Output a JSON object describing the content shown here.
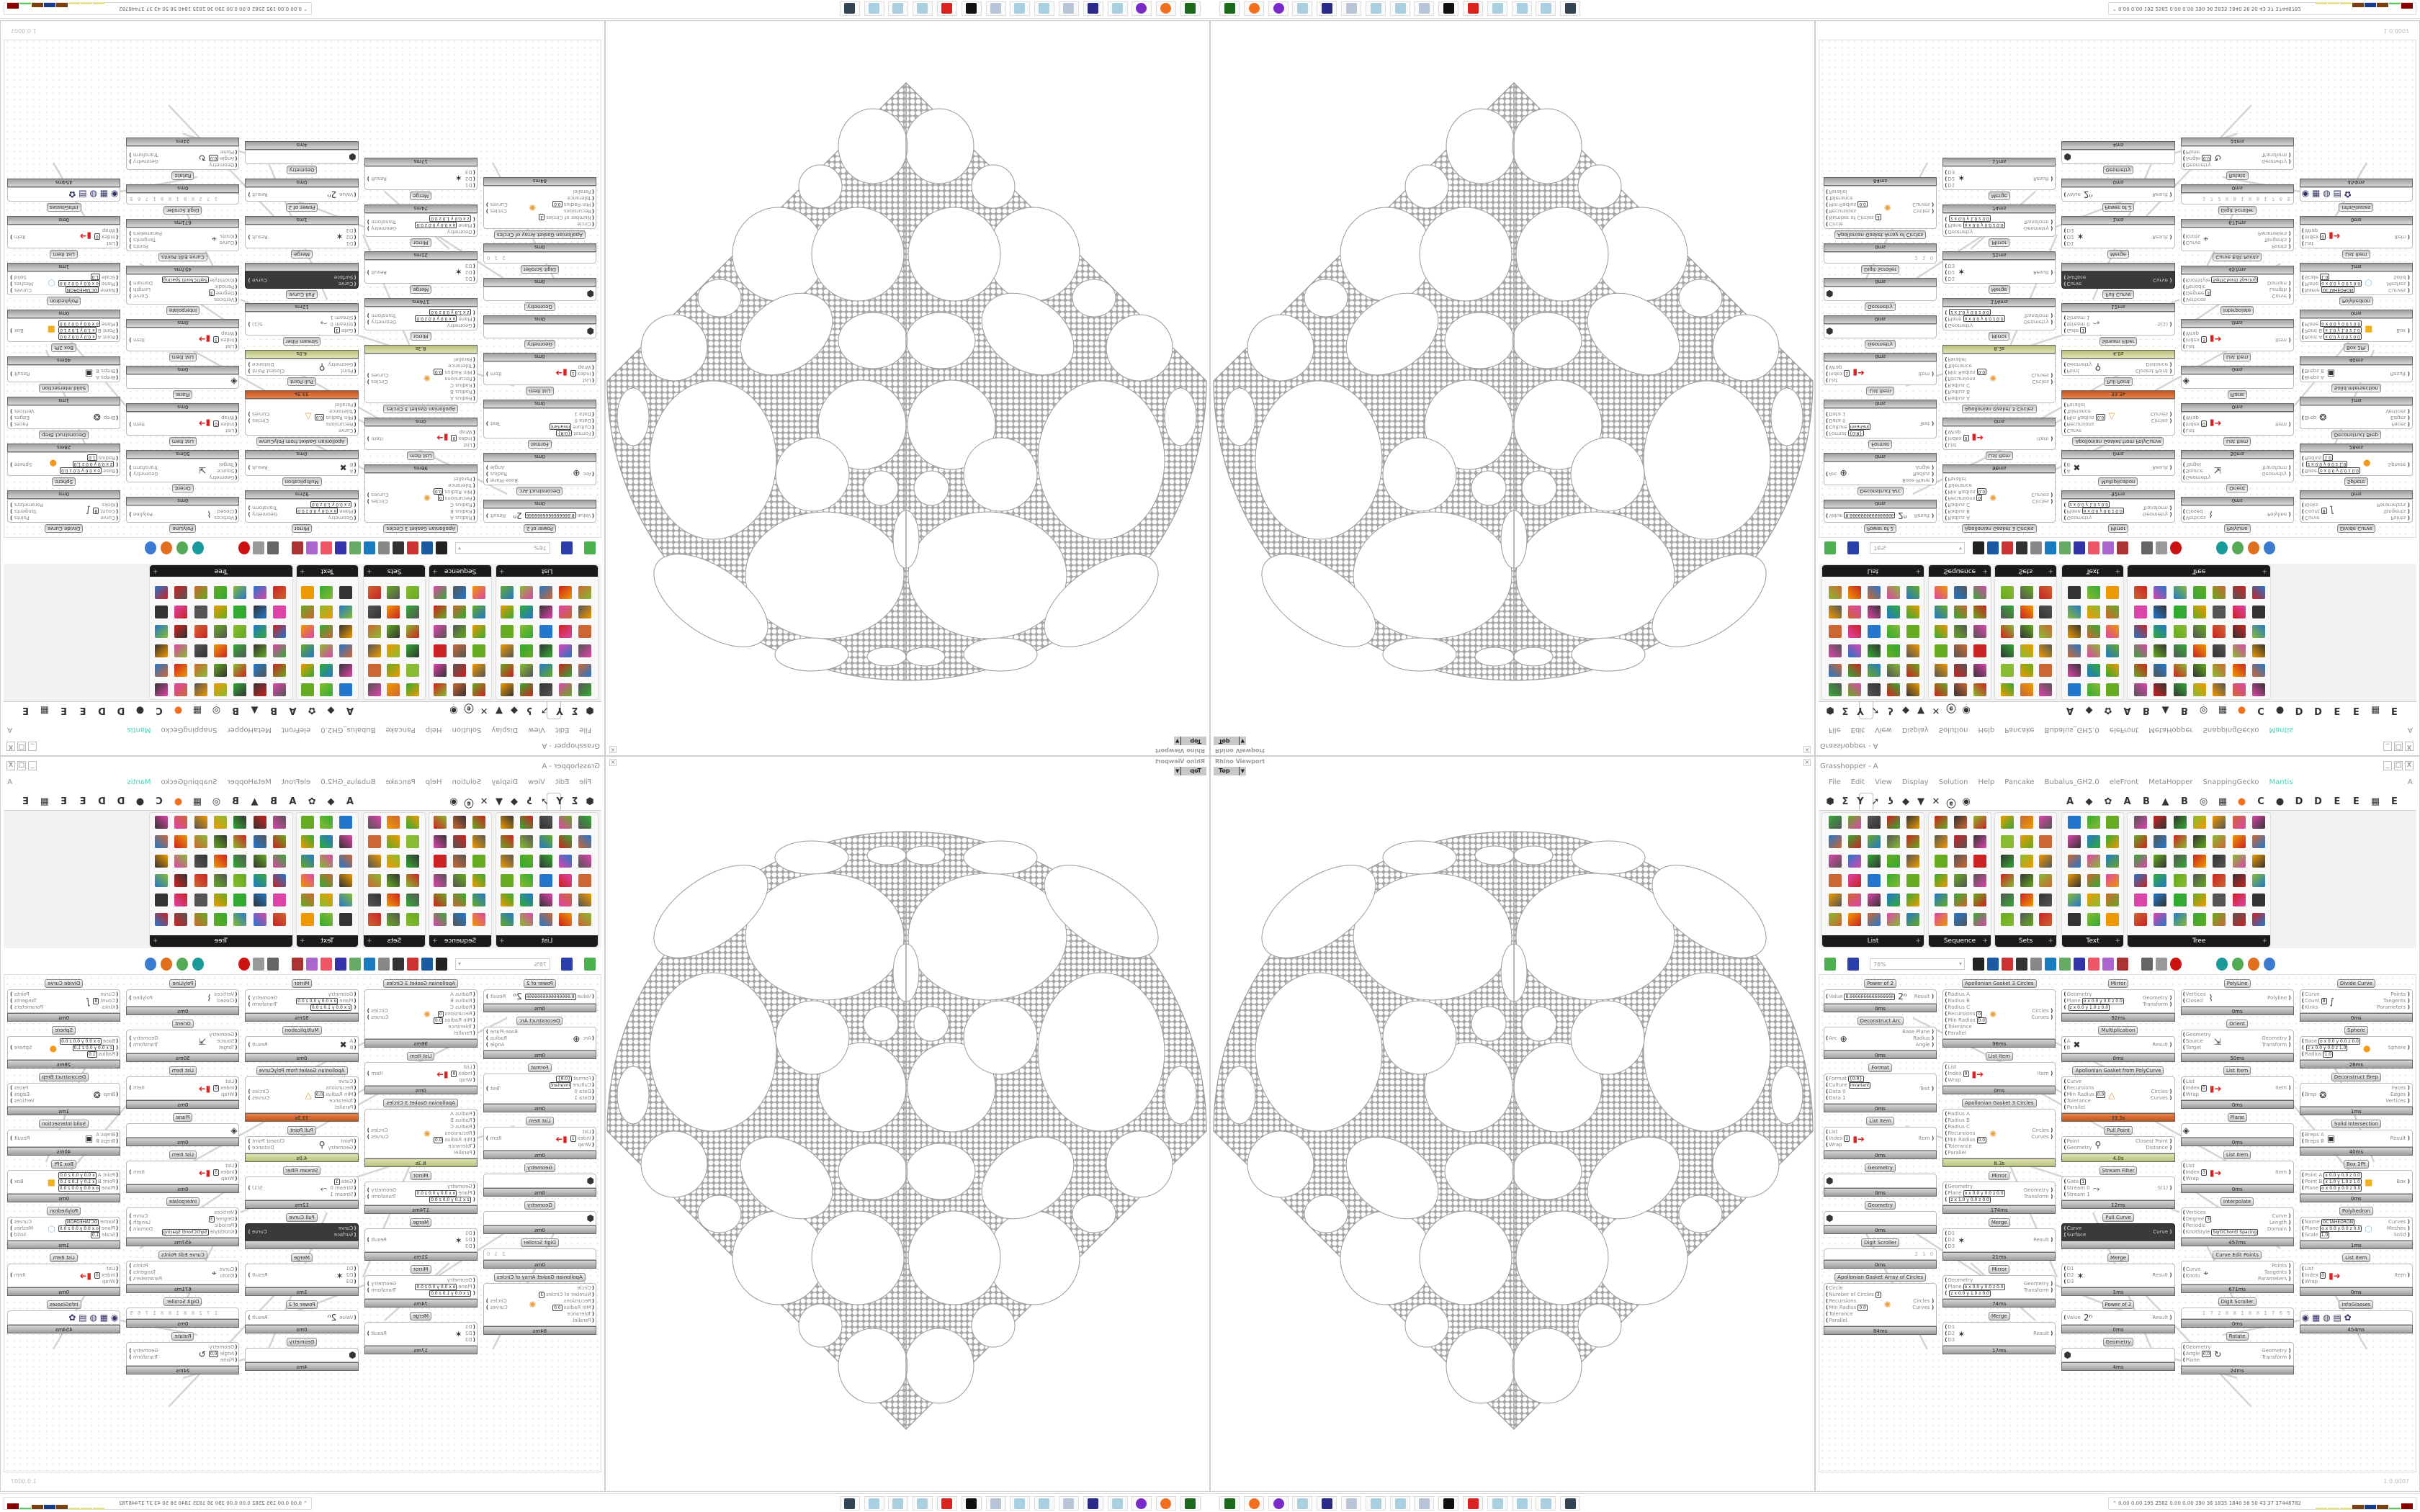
{
  "colors": {
    "mantis": "#3fd3b8",
    "status_warn": "#c2c98a",
    "status_error": "#d2602a",
    "fractal_line": "#a6a6a6"
  },
  "viewport": {
    "title": "Rhino Viewport",
    "view": "Top",
    "close_icon": "close-icon"
  },
  "grasshopper": {
    "title": "Grasshopper - A",
    "window_buttons": [
      "_",
      "□",
      "X"
    ],
    "menu": [
      "File",
      "Edit",
      "View",
      "Display",
      "Solution",
      "Help",
      "Pancake",
      "Bubalus_GH2.0",
      "eleFront",
      "MetaHopper",
      "SnappingGecko",
      "Mantis"
    ],
    "menu_right": "A",
    "tabs": [
      "⬢",
      "Σ",
      "Y",
      "➚",
      "ʖ",
      "◆",
      "▼",
      "✕",
      "ⓔ",
      "◉"
    ],
    "tabs_right": [
      "A",
      "◆",
      "✿",
      "A",
      "B",
      "▲",
      "B",
      "◎",
      "▦",
      "●",
      "C",
      "●",
      "D",
      "D",
      "E",
      "E",
      "▦",
      "E"
    ],
    "panels": [
      {
        "label": "List"
      },
      {
        "label": "Sequence"
      },
      {
        "label": "Sets"
      },
      {
        "label": "Text"
      },
      {
        "label": "Tree"
      }
    ],
    "zoom": "76%",
    "version": "1.0.0007",
    "components": [
      {
        "label": "Power of 2",
        "inputs": [
          {
            "n": "Value",
            "v": "8.6666666666666666"
          }
        ],
        "outputs": [
          {
            "n": "Result"
          }
        ],
        "icon": "power-icon",
        "status": "0ms"
      },
      {
        "label": "Deconstruct Arc",
        "inputs": [
          {
            "n": "Arc"
          }
        ],
        "outputs": [
          {
            "n": "Base Plane"
          },
          {
            "n": "Radius"
          },
          {
            "n": "Angle"
          }
        ],
        "icon": "arc-icon",
        "status": "0ms"
      },
      {
        "label": "Format",
        "inputs": [
          {
            "n": "Format",
            "v": "{0:R}"
          },
          {
            "n": "Culture",
            "v": "invariant"
          },
          {
            "n": "Data 0"
          },
          {
            "n": "Data 1"
          }
        ],
        "outputs": [
          {
            "n": "Text"
          }
        ],
        "status": "0ms"
      },
      {
        "label": "List Item",
        "inputs": [
          {
            "n": "List"
          },
          {
            "n": "Index",
            "v": "1"
          },
          {
            "n": "Wrap"
          }
        ],
        "outputs": [
          {
            "n": "Item"
          }
        ],
        "icon": "list-item-icon",
        "status": "0ms"
      },
      {
        "label": "Geometry",
        "inputs": [],
        "outputs": [],
        "icon": "geometry-icon",
        "status": "0ms"
      },
      {
        "label": "Geometry",
        "inputs": [],
        "outputs": [],
        "icon": "geometry-icon",
        "status": "0ms"
      },
      {
        "label": "Digit Scroller",
        "inputs": [],
        "outputs": [],
        "display": "2 1 0",
        "status": "0ms"
      },
      {
        "label": "Apollonian Gasket Array of Circles",
        "inputs": [
          {
            "n": "Circle"
          },
          {
            "n": "Number of Circles",
            "v": "3"
          },
          {
            "n": "Recursions"
          },
          {
            "n": "Min Radius",
            "v": "0.0"
          },
          {
            "n": "Tolerance"
          },
          {
            "n": "Parallel"
          }
        ],
        "outputs": [
          {
            "n": "Circles"
          },
          {
            "n": "Curves"
          }
        ],
        "icon": "apollonian-icon",
        "status": "84ms"
      },
      {
        "label": "Apollonian Gasket 3 Circles",
        "inputs": [
          {
            "n": "Radius A"
          },
          {
            "n": "Radius B"
          },
          {
            "n": "Radius C"
          },
          {
            "n": "Recursions",
            "v": "0"
          },
          {
            "n": "Min Radius",
            "v": "0.0"
          },
          {
            "n": "Tolerance"
          },
          {
            "n": "Parallel"
          }
        ],
        "outputs": [
          {
            "n": "Circles"
          },
          {
            "n": "Curves"
          }
        ],
        "icon": "apollonian-icon",
        "status": "96ms"
      },
      {
        "label": "List Item",
        "inputs": [
          {
            "n": "List"
          },
          {
            "n": "Index",
            "v": "0"
          },
          {
            "n": "Wrap"
          }
        ],
        "outputs": [
          {
            "n": "Item"
          }
        ],
        "icon": "list-item-icon",
        "status": "0ms"
      },
      {
        "label": "Apollonian Gasket 3 Circles",
        "inputs": [
          {
            "n": "Radius A"
          },
          {
            "n": "Radius B"
          },
          {
            "n": "Radius C"
          },
          {
            "n": "Recursions"
          },
          {
            "n": "Min Radius",
            "v": "0.0"
          },
          {
            "n": "Tolerance"
          },
          {
            "n": "Parallel"
          }
        ],
        "outputs": [
          {
            "n": "Circles"
          },
          {
            "n": "Curves"
          }
        ],
        "icon": "apollonian-icon",
        "status": "8.3s",
        "state": "warn"
      },
      {
        "label": "Mirror",
        "inputs": [
          {
            "n": "Geometry"
          },
          {
            "n": "Plane",
            "v": "o x 0.0 y 0.0 z 0.0"
          },
          {
            "n": "",
            "v": "z x 1.0 y 0.0 z 0.0"
          }
        ],
        "outputs": [
          {
            "n": "Geometry"
          },
          {
            "n": "Transform"
          }
        ],
        "status": "174ms"
      },
      {
        "label": "Merge",
        "inputs": [
          {
            "n": "D1"
          },
          {
            "n": "D2"
          },
          {
            "n": "D3"
          }
        ],
        "outputs": [
          {
            "n": "Result"
          }
        ],
        "icon": "merge-icon",
        "status": "21ms"
      },
      {
        "label": "Mirror",
        "inputs": [
          {
            "n": "Geometry"
          },
          {
            "n": "Plane",
            "v": "o x 0.0 y 0.0 z 0.0"
          },
          {
            "n": "",
            "v": "z x 0.0 y 1.0 z 0.0"
          }
        ],
        "outputs": [
          {
            "n": "Geometry"
          },
          {
            "n": "Transform"
          }
        ],
        "status": "74ms"
      },
      {
        "label": "Merge",
        "inputs": [
          {
            "n": "D1"
          },
          {
            "n": "D2"
          },
          {
            "n": "D3"
          }
        ],
        "outputs": [
          {
            "n": "Result"
          }
        ],
        "icon": "merge-icon",
        "status": "17ms"
      },
      {
        "label": "Mirror",
        "inputs": [
          {
            "n": "Geometry"
          },
          {
            "n": "Plane",
            "v": "o x 0.0 y 0.0 z 0.0"
          },
          {
            "n": "",
            "v": "z x 0.0 y 1.0 z 0.0"
          }
        ],
        "outputs": [
          {
            "n": "Geometry"
          },
          {
            "n": "Transform"
          }
        ],
        "status": "92ms"
      },
      {
        "label": "Multiplication",
        "inputs": [
          {
            "n": "A"
          },
          {
            "n": "B"
          }
        ],
        "outputs": [
          {
            "n": "Result"
          }
        ],
        "icon": "multiply-icon",
        "status": "0ms"
      },
      {
        "label": "Apollonian Gasket from PolyCurve",
        "inputs": [
          {
            "n": "Curve"
          },
          {
            "n": "Recursions"
          },
          {
            "n": "Min Radius",
            "v": "0.0"
          },
          {
            "n": "Tolerance"
          },
          {
            "n": "Parallel"
          }
        ],
        "outputs": [
          {
            "n": "Circles"
          },
          {
            "n": "Curves"
          }
        ],
        "icon": "triangle-icon",
        "status": "33.3s",
        "state": "err"
      },
      {
        "label": "Pull Point",
        "inputs": [
          {
            "n": "Point"
          },
          {
            "n": "Geometry"
          }
        ],
        "outputs": [
          {
            "n": "Closest Point"
          },
          {
            "n": "Distance"
          }
        ],
        "icon": "pull-point-icon",
        "status": "4.0s",
        "state": "warn"
      },
      {
        "label": "Stream Filter",
        "inputs": [
          {
            "n": "Gate",
            "v": "1"
          },
          {
            "n": "Stream 0"
          },
          {
            "n": "Stream 1"
          }
        ],
        "outputs": [
          {
            "n": "S(1)"
          }
        ],
        "icon": "stream-filter-icon",
        "status": "12ms"
      },
      {
        "label": "Pull Curve",
        "inputs": [
          {
            "n": "Curve"
          },
          {
            "n": "Surface"
          }
        ],
        "outputs": [
          {
            "n": "Curve"
          }
        ],
        "kind": "dark",
        "status": ""
      },
      {
        "label": "Merge",
        "inputs": [
          {
            "n": "D1"
          },
          {
            "n": "D2"
          },
          {
            "n": "D3"
          }
        ],
        "outputs": [
          {
            "n": "Result"
          }
        ],
        "icon": "merge-icon",
        "status": "1ms"
      },
      {
        "label": "Power of 2",
        "inputs": [
          {
            "n": "Value"
          }
        ],
        "outputs": [
          {
            "n": "Result"
          }
        ],
        "icon": "power-icon",
        "status": "0ms"
      },
      {
        "label": "Geometry",
        "inputs": [],
        "outputs": [],
        "icon": "geometry-icon",
        "status": "4ms"
      },
      {
        "label": "PolyLine",
        "inputs": [
          {
            "n": "Vertices"
          },
          {
            "n": "Closed"
          }
        ],
        "outputs": [
          {
            "n": "Polyline"
          }
        ],
        "icon": "polyline-icon",
        "status": "0ms"
      },
      {
        "label": "Orient",
        "inputs": [
          {
            "n": "Geometry"
          },
          {
            "n": "Source"
          },
          {
            "n": "Target"
          }
        ],
        "outputs": [
          {
            "n": "Geometry"
          },
          {
            "n": "Transform"
          }
        ],
        "icon": "orient-icon",
        "status": "50ms"
      },
      {
        "label": "List Item",
        "inputs": [
          {
            "n": "List"
          },
          {
            "n": "Index",
            "v": "0"
          },
          {
            "n": "Wrap"
          }
        ],
        "outputs": [
          {
            "n": "Item"
          }
        ],
        "icon": "list-item-icon",
        "status": "0ms"
      },
      {
        "label": "Plane",
        "inputs": [],
        "outputs": [],
        "icon": "plane-icon",
        "status": "0ms"
      },
      {
        "label": "List Item",
        "inputs": [
          {
            "n": "List"
          },
          {
            "n": "Index",
            "v": "3"
          },
          {
            "n": "Wrap"
          }
        ],
        "outputs": [
          {
            "n": "Item"
          }
        ],
        "icon": "list-item-icon",
        "status": "0ms"
      },
      {
        "label": "Interpolate",
        "inputs": [
          {
            "n": "Vertices"
          },
          {
            "n": "Degree",
            "v": "3"
          },
          {
            "n": "Periodic"
          },
          {
            "n": "KnotStyle",
            "v": "Sqrt(Chord) Spacing"
          }
        ],
        "outputs": [
          {
            "n": "Curve"
          },
          {
            "n": "Length"
          },
          {
            "n": "Domain"
          }
        ],
        "status": "457ms"
      },
      {
        "label": "Curve Edit Points",
        "inputs": [
          {
            "n": "Curve"
          },
          {
            "n": "Knots"
          }
        ],
        "outputs": [
          {
            "n": "Points"
          },
          {
            "n": "Tangents"
          },
          {
            "n": "Parameters"
          }
        ],
        "icon": "edit-points-icon",
        "status": "671ms"
      },
      {
        "label": "Digit Scroller",
        "inputs": [],
        "outputs": [],
        "display": "1 7 2 8 8 1 8 8 1 7 6 9",
        "status": "0ms"
      },
      {
        "label": "Rotate",
        "inputs": [
          {
            "n": "Geometry"
          },
          {
            "n": "Angle",
            "v": "0.0"
          },
          {
            "n": "Plane"
          }
        ],
        "outputs": [
          {
            "n": "Geometry"
          },
          {
            "n": "Transform"
          }
        ],
        "icon": "rotate-icon",
        "status": "24ms"
      },
      {
        "label": "Divide Curve",
        "inputs": [
          {
            "n": "Curve"
          },
          {
            "n": "Count",
            "v": "8"
          },
          {
            "n": "Kinks"
          }
        ],
        "outputs": [
          {
            "n": "Points"
          },
          {
            "n": "Tangents"
          },
          {
            "n": "Parameters"
          }
        ],
        "icon": "divide-icon",
        "status": "0ms"
      },
      {
        "label": "Sphere",
        "inputs": [
          {
            "n": "Base",
            "v": "o x 0.0 y 0.0 z 0.0"
          },
          {
            "n": "",
            "v": "z x 0.0 y 0.0 z 1.0"
          },
          {
            "n": "Radius",
            "v": "1.0"
          }
        ],
        "outputs": [
          {
            "n": "Sphere"
          }
        ],
        "icon": "sphere-icon",
        "status": "28ms"
      },
      {
        "label": "Deconstruct Brep",
        "inputs": [
          {
            "n": "Brep"
          }
        ],
        "outputs": [
          {
            "n": "Faces"
          },
          {
            "n": "Edges"
          },
          {
            "n": "Vertices"
          }
        ],
        "icon": "brep-icon",
        "status": "1ms"
      },
      {
        "label": "Solid Intersection",
        "inputs": [
          {
            "n": "Breps A"
          },
          {
            "n": "Breps B"
          }
        ],
        "outputs": [
          {
            "n": "Result"
          }
        ],
        "icon": "intersection-icon",
        "status": "40ms"
      },
      {
        "label": "Box 2Pt",
        "inputs": [
          {
            "n": "Point A",
            "v": "x 0.0 y 0.0 z 0.0"
          },
          {
            "n": "Point B",
            "v": "x 1.0 y 1.0 z 1.0"
          },
          {
            "n": "Plane",
            "v": "o x 0.0 y 0.0 z 0.0"
          }
        ],
        "outputs": [
          {
            "n": "Box"
          }
        ],
        "icon": "box-icon",
        "status": "0ms"
      },
      {
        "label": "Polyhedron",
        "inputs": [
          {
            "n": "Name",
            "v": "OCTAHEDRON"
          },
          {
            "n": "Plane",
            "v": "o x 0.0 y 0.0 z 0.0"
          },
          {
            "n": "Scale",
            "v": "1.0"
          }
        ],
        "outputs": [
          {
            "n": "Curves"
          },
          {
            "n": "Meshes"
          },
          {
            "n": "Solid"
          }
        ],
        "icon": "polyhedron-icon",
        "status": "1ms"
      },
      {
        "label": "List Item",
        "inputs": [
          {
            "n": "List"
          },
          {
            "n": "Index",
            "v": "0"
          },
          {
            "n": "Wrap"
          }
        ],
        "outputs": [
          {
            "n": "Item"
          }
        ],
        "icon": "list-item-icon",
        "status": "0ms"
      },
      {
        "label": "InfoGlasses",
        "inputs": [],
        "outputs": [],
        "icon": "infoglasses-icon",
        "status": "454ms"
      }
    ]
  },
  "taskbar": {
    "apps": [
      "terminal-icon",
      "firefox-icon",
      "chat-app-icon",
      "notepad-icon",
      "save-64-icon",
      "scroll-icon",
      "notepad-icon",
      "notepad-icon",
      "scroll-icon",
      "rhino-icon",
      "gear-app-icon",
      "notepad-icon",
      "notepad-icon",
      "notepad-icon",
      "screen-capture-icon"
    ],
    "stats": "0.00 0.00 195 2562 0.00 0.00 390 36 1835 1840 56 50 43 37 37446782",
    "expand_icon": "⌃"
  }
}
